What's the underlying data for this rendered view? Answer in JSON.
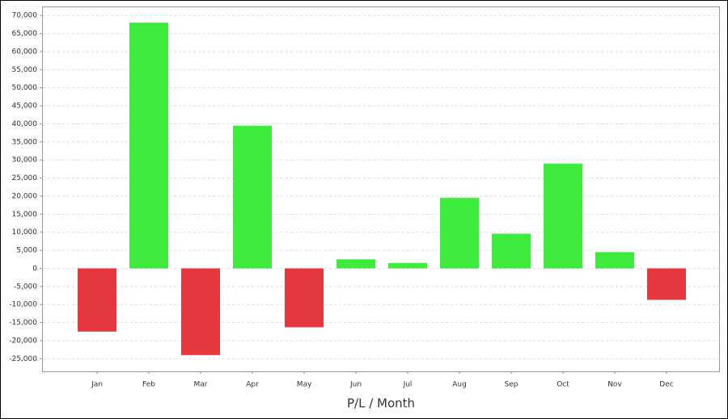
{
  "chart_data": {
    "type": "bar",
    "x_label": "P/L / Month",
    "categories": [
      "Jan",
      "Feb",
      "Mar",
      "Apr",
      "May",
      "Jun",
      "Jul",
      "Aug",
      "Sep",
      "Oct",
      "Nov",
      "Dec"
    ],
    "values": [
      -17500,
      68000,
      -24000,
      39500,
      -16300,
      2500,
      1500,
      19500,
      9600,
      29000,
      4500,
      -8700
    ],
    "positive_color": "#3deb3d",
    "negative_color": "#e8383f",
    "ylim": [
      -28500,
      72500
    ],
    "yticks": [
      {
        "value": -25000,
        "label": "-25,000"
      },
      {
        "value": -20000,
        "label": "-20,000"
      },
      {
        "value": -15000,
        "label": "-15,000"
      },
      {
        "value": -10000,
        "label": "-10,000"
      },
      {
        "value": -5000,
        "label": "-5,000"
      },
      0,
      {
        "value": 5000,
        "label": "5,000"
      },
      {
        "value": 10000,
        "label": "10,000"
      },
      {
        "value": 15000,
        "label": "15,000"
      },
      {
        "value": 20000,
        "label": "20,000"
      },
      {
        "value": 25000,
        "label": "25,000"
      },
      {
        "value": 30000,
        "label": "30,000"
      },
      {
        "value": 35000,
        "label": "35,000"
      },
      {
        "value": 40000,
        "label": "40,000"
      },
      {
        "value": 45000,
        "label": "45,000"
      },
      {
        "value": 50000,
        "label": "50,000"
      },
      {
        "value": 55000,
        "label": "55,000"
      },
      {
        "value": 60000,
        "label": "60,000"
      },
      {
        "value": 65000,
        "label": "65,000"
      },
      {
        "value": 70000,
        "label": "70,000"
      }
    ],
    "grid": true
  }
}
